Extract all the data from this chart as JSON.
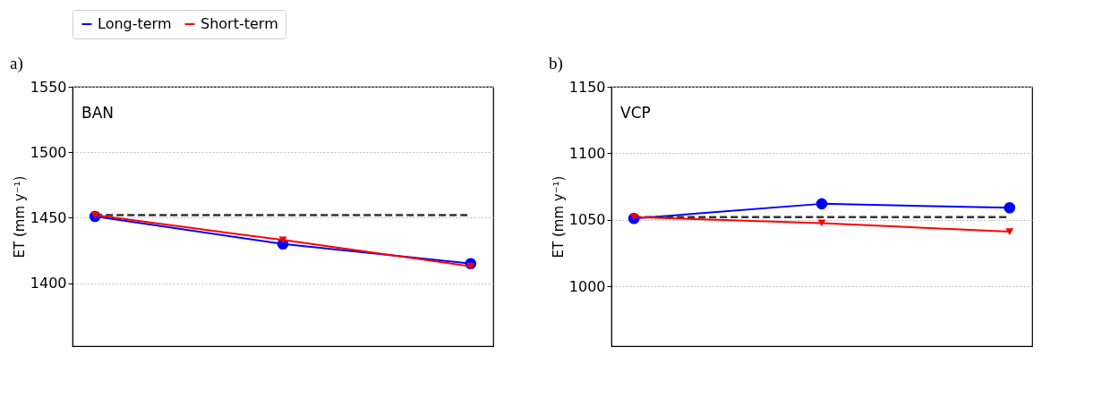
{
  "chart_data": [
    {
      "type": "line",
      "title": "a)",
      "ylabel": "ET (mm y⁻¹)",
      "categories": [
        null,
        null,
        null
      ],
      "ylim": [
        1352,
        1550
      ],
      "yticks": [
        1400,
        1450,
        1500,
        1550
      ],
      "grid": "y",
      "legend": "top",
      "tick_labels": "y",
      "series": [
        {
          "name": "Long-term",
          "color": "#0000ff",
          "marker": "circle",
          "values": [
            1451,
            1430,
            1415
          ]
        },
        {
          "name": "Short-term",
          "color": "#ff0000",
          "marker": "triangle",
          "values": [
            1452,
            1433,
            1413
          ]
        }
      ],
      "ref_lines": [
        {
          "axis": "y",
          "value": 1452,
          "color": "#333333",
          "line_style": "dashed"
        }
      ],
      "annotations": [
        "BAN"
      ]
    },
    {
      "type": "line",
      "title": "b)",
      "ylabel": "ET (mm y⁻¹)",
      "categories": [
        null,
        null,
        null
      ],
      "ylim": [
        955,
        1150
      ],
      "yticks": [
        1000,
        1050,
        1100,
        1150
      ],
      "grid": "y",
      "tick_labels": "y",
      "series": [
        {
          "name": "Long-term",
          "color": "#0000ff",
          "marker": "circle",
          "values": [
            1051,
            1062,
            1059
          ]
        },
        {
          "name": "Short-term",
          "color": "#ff0000",
          "marker": "triangle",
          "values": [
            1052,
            1047.5,
            1041
          ]
        }
      ],
      "ref_lines": [
        {
          "axis": "y",
          "value": 1052,
          "color": "#333333",
          "line_style": "dashed"
        }
      ],
      "annotations": [
        "VCP"
      ]
    }
  ]
}
